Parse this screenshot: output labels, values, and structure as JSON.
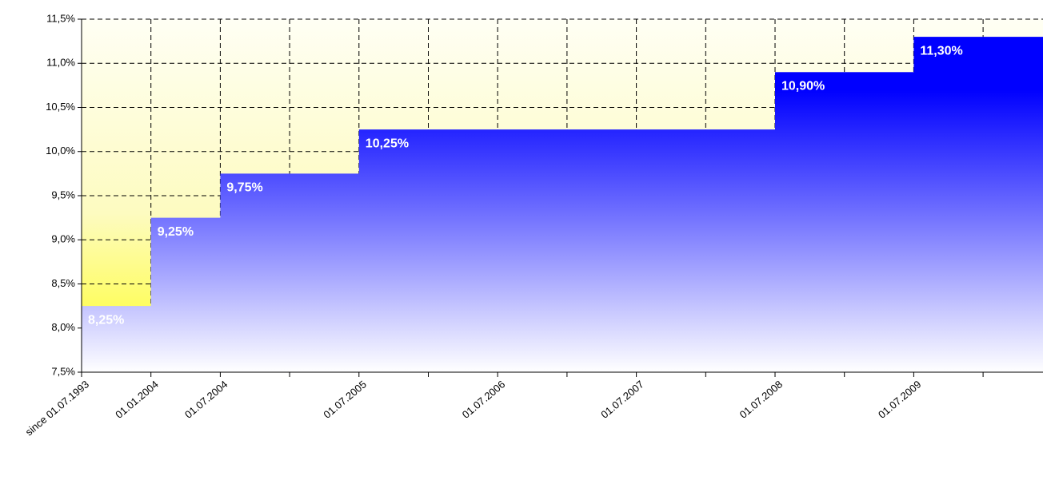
{
  "chart_data": {
    "type": "bar",
    "categories": [
      "since 01.07.1993",
      "01.01.2004",
      "01.07.2004",
      null,
      "01.07.2005",
      null,
      "01.07.2006",
      null,
      "01.07.2007",
      null,
      "01.07.2008",
      null,
      "01.07.2009",
      null
    ],
    "values": [
      8.25,
      9.25,
      9.75,
      9.75,
      10.25,
      10.25,
      10.25,
      10.25,
      10.25,
      10.25,
      10.9,
      10.9,
      11.3,
      11.3
    ],
    "value_labels": [
      "8,25%",
      "9,25%",
      "9,75%",
      null,
      "10,25%",
      null,
      null,
      null,
      null,
      null,
      "10,90%",
      null,
      "11,30%",
      null
    ],
    "color": "#0000ff",
    "ylim": [
      7.5,
      11.5
    ],
    "yticks": [
      {
        "value": 7.5,
        "label": "7,5%"
      },
      {
        "value": 8.0,
        "label": "8,0%"
      },
      {
        "value": 8.5,
        "label": "8,5%"
      },
      {
        "value": 9.0,
        "label": "9,0%"
      },
      {
        "value": 9.5,
        "label": "9,5%"
      },
      {
        "value": 10.0,
        "label": "10,0%"
      },
      {
        "value": 10.5,
        "label": "10,5%"
      },
      {
        "value": 11.0,
        "label": "11,0%"
      },
      {
        "value": 11.5,
        "label": "11,5%"
      }
    ],
    "grid": true
  }
}
